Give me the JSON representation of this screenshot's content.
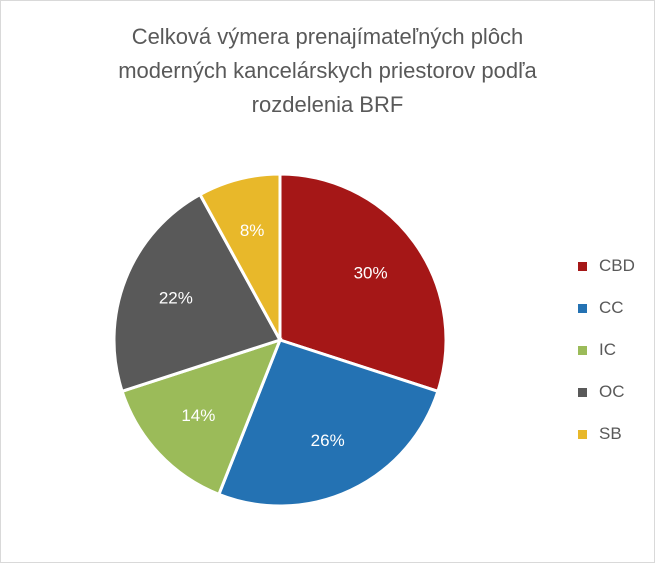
{
  "chart_data": {
    "type": "pie",
    "title_lines": [
      "Celková výmera prenajímateľných plôch",
      "moderných kancelárskych priestorov podľa",
      "rozdelenia BRF"
    ],
    "categories": [
      "CBD",
      "CC",
      "IC",
      "OC",
      "SB"
    ],
    "values": [
      30,
      26,
      14,
      22,
      8
    ],
    "data_labels": [
      "30%",
      "26%",
      "14%",
      "22%",
      "8%"
    ],
    "colors": [
      "#a51717",
      "#2472b3",
      "#9bbb59",
      "#595959",
      "#e8b82a"
    ],
    "legend_position": "right"
  }
}
